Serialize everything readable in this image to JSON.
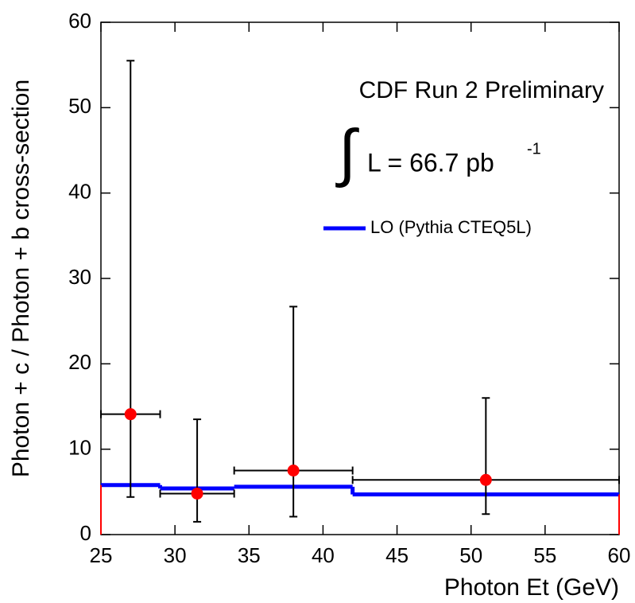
{
  "chart_data": {
    "type": "errorbar",
    "xlabel": "Photon Et (GeV)",
    "ylabel": "Photon + c / Photon + b cross-section",
    "annotations": [
      "CDF Run 2 Preliminary",
      "∫",
      "L = 66.7 pb",
      "-1"
    ],
    "xlim": [
      25,
      60
    ],
    "ylim": [
      0,
      60
    ],
    "xticks": [
      25,
      30,
      35,
      40,
      45,
      50,
      55,
      60
    ],
    "yticks": [
      0,
      10,
      20,
      30,
      40,
      50,
      60
    ],
    "series": [
      {
        "name": "LO (Pythia CTEQ5L)",
        "type": "step",
        "color": "#0000ff",
        "edge_color": "#ff0000",
        "bins": [
          25,
          29,
          34,
          42,
          60
        ],
        "values": [
          5.8,
          5.4,
          5.6,
          4.7
        ]
      },
      {
        "type": "errorbar",
        "color": "#ff0000",
        "x": [
          27,
          31.5,
          38,
          51
        ],
        "values": [
          14.1,
          4.8,
          7.5,
          6.4
        ],
        "y_lower": [
          4.4,
          1.5,
          2.1,
          2.4
        ],
        "y_upper": [
          55.5,
          13.5,
          26.7,
          16
        ],
        "x_low": [
          25,
          29,
          34,
          42
        ],
        "x_high": [
          29,
          34,
          42,
          60
        ]
      }
    ]
  }
}
